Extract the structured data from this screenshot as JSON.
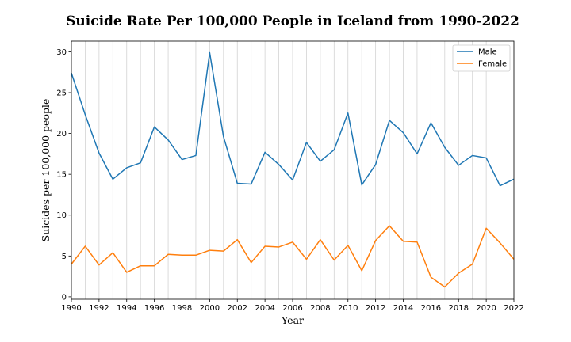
{
  "chart_data": {
    "type": "line",
    "title": "Suicide Rate Per 100,000 People in Iceland from 1990-2022",
    "xlabel": "Year",
    "ylabel": "Suicides per 100,000 people",
    "xlim": [
      1990,
      2022
    ],
    "ylim": [
      -0.3,
      31.3
    ],
    "x_ticks": [
      1990,
      1992,
      1994,
      1996,
      1998,
      2000,
      2002,
      2004,
      2006,
      2008,
      2010,
      2012,
      2014,
      2016,
      2018,
      2020,
      2022
    ],
    "y_ticks": [
      0,
      5,
      10,
      15,
      20,
      25,
      30
    ],
    "grid": "vertical",
    "legend_position": "top-right",
    "x": [
      1990,
      1991,
      1992,
      1993,
      1994,
      1995,
      1996,
      1997,
      1998,
      1999,
      2000,
      2001,
      2002,
      2003,
      2004,
      2005,
      2006,
      2007,
      2008,
      2009,
      2010,
      2011,
      2012,
      2013,
      2014,
      2015,
      2016,
      2017,
      2018,
      2019,
      2020,
      2021,
      2022
    ],
    "series": [
      {
        "name": "Male",
        "color": "#1f77b4",
        "values": [
          27.4,
          22.3,
          17.6,
          14.4,
          15.8,
          16.4,
          20.8,
          19.2,
          16.8,
          17.3,
          29.9,
          19.6,
          13.9,
          13.8,
          17.7,
          16.2,
          14.3,
          18.9,
          16.6,
          18.0,
          22.5,
          13.7,
          16.2,
          21.6,
          20.1,
          17.5,
          21.3,
          18.3,
          16.1,
          17.3,
          17.0,
          13.6,
          14.4
        ]
      },
      {
        "name": "Female",
        "color": "#ff7f0e",
        "values": [
          4.0,
          6.2,
          3.9,
          5.4,
          3.0,
          3.8,
          3.8,
          5.2,
          5.1,
          5.1,
          5.7,
          5.6,
          7.0,
          4.2,
          6.2,
          6.1,
          6.7,
          4.6,
          7.0,
          4.5,
          6.3,
          3.2,
          6.9,
          8.7,
          6.8,
          6.7,
          2.4,
          1.2,
          2.9,
          4.0,
          8.4,
          6.6,
          4.6
        ]
      }
    ]
  }
}
